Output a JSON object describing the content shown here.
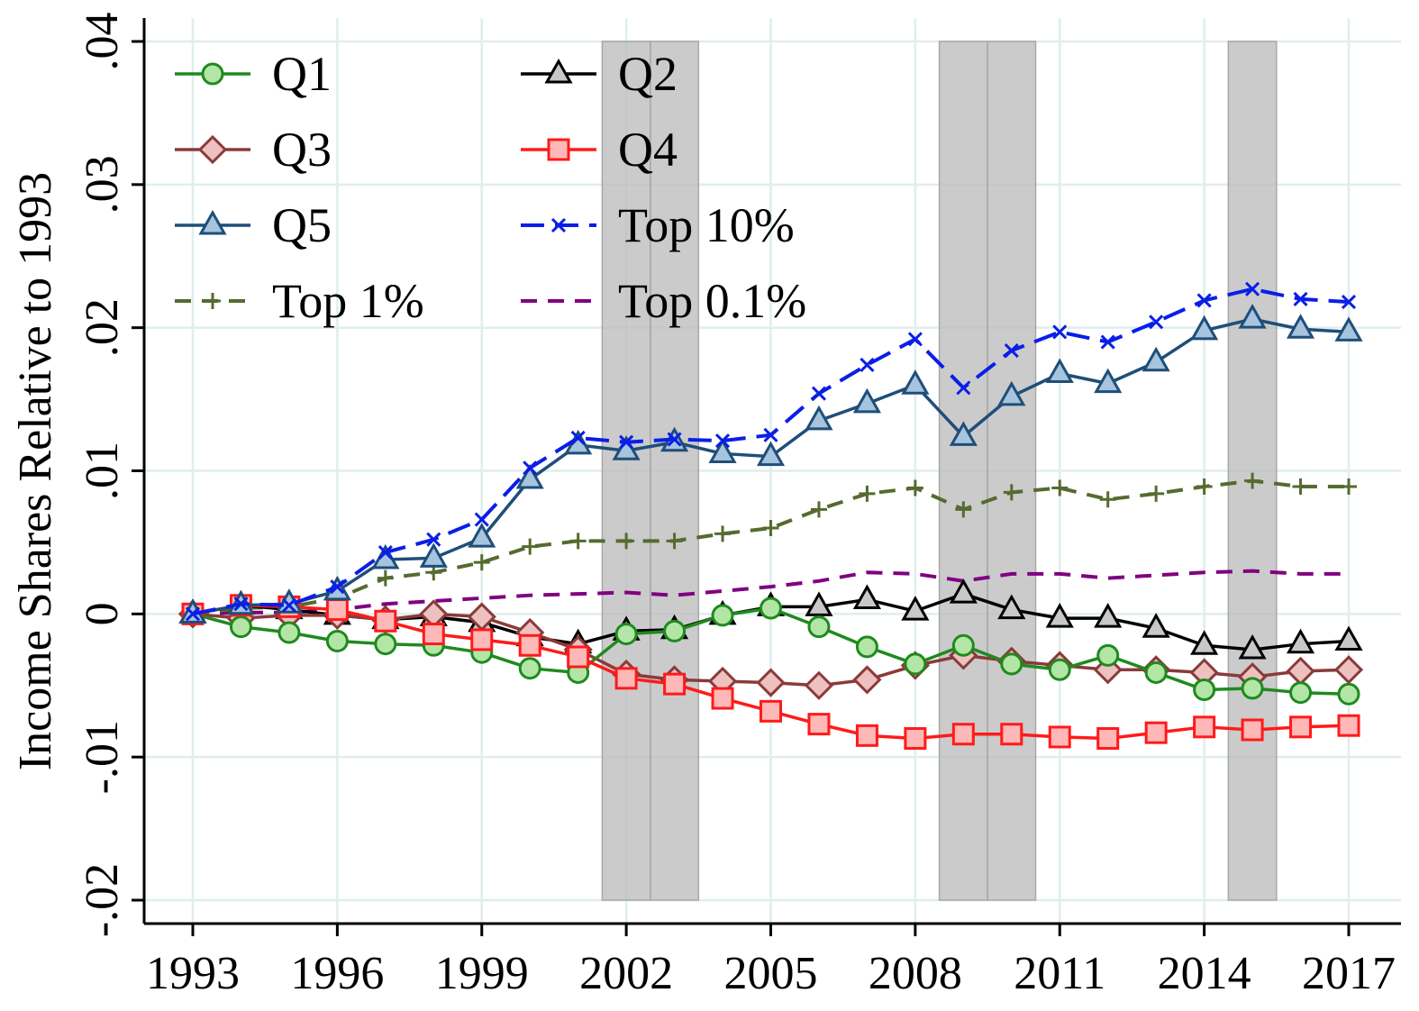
{
  "chart_data": {
    "type": "line",
    "title": "",
    "xlabel": "",
    "ylabel": "Income Shares Relative to 1993",
    "xlim": [
      1993,
      2017
    ],
    "ylim": [
      -0.02,
      0.04
    ],
    "x_ticks": [
      1993,
      1996,
      1999,
      2002,
      2005,
      2008,
      2011,
      2014,
      2017
    ],
    "x_tick_labels": [
      "1993",
      "1996",
      "1999",
      "2002",
      "2005",
      "2008",
      "2011",
      "2014",
      "2017"
    ],
    "y_ticks": [
      -0.02,
      -0.01,
      0,
      0.01,
      0.02,
      0.03,
      0.04
    ],
    "y_tick_labels": [
      "-.02",
      "-.01",
      "0",
      ".01",
      ".02",
      ".03",
      ".04"
    ],
    "grid": true,
    "legend_position": "top-left",
    "recession_bands": [
      [
        2001.5,
        2002.5
      ],
      [
        2002.5,
        2003.5
      ],
      [
        2008.5,
        2009.5
      ],
      [
        2009.5,
        2010.5
      ],
      [
        2014.5,
        2015.5
      ]
    ],
    "x": [
      1993,
      1994,
      1995,
      1996,
      1997,
      1998,
      1999,
      2000,
      2001,
      2002,
      2003,
      2004,
      2005,
      2006,
      2007,
      2008,
      2009,
      2010,
      2011,
      2012,
      2013,
      2014,
      2015,
      2016,
      2017
    ],
    "series": [
      {
        "name": "Q1",
        "color": "#1f8a1f",
        "fill": "#b3e6a6",
        "marker": "circle",
        "dash": "solid",
        "values": [
          0,
          -0.0009,
          -0.0013,
          -0.0019,
          -0.0021,
          -0.0022,
          -0.0027,
          -0.0038,
          -0.0041,
          -0.0014,
          -0.0012,
          -0.0001,
          0.0004,
          -0.0009,
          -0.0023,
          -0.0035,
          -0.0022,
          -0.0035,
          -0.0039,
          -0.0029,
          -0.0041,
          -0.0053,
          -0.0052,
          -0.0055,
          -0.0056
        ]
      },
      {
        "name": "Q2",
        "color": "#000000",
        "fill": "#c8c8c8",
        "marker": "triangle",
        "dash": "solid",
        "values": [
          0,
          0.0006,
          0.0003,
          -0.0001,
          -0.0004,
          -0.0002,
          -0.0006,
          -0.0016,
          -0.0021,
          -0.0012,
          -0.0011,
          -0.0001,
          0.0005,
          0.0005,
          0.001,
          0.0002,
          0.0014,
          0.0003,
          -0.0003,
          -0.0003,
          -0.001,
          -0.0022,
          -0.0025,
          -0.0021,
          -0.0019
        ]
      },
      {
        "name": "Q3",
        "color": "#8b3a3a",
        "fill": "#eec1c1",
        "marker": "diamond",
        "dash": "solid",
        "values": [
          0,
          -0.0003,
          -0.0001,
          -0.0001,
          -0.0004,
          0.0,
          -0.0002,
          -0.0013,
          -0.0025,
          -0.0042,
          -0.0046,
          -0.0047,
          -0.0048,
          -0.005,
          -0.0046,
          -0.0036,
          -0.0029,
          -0.0033,
          -0.0036,
          -0.0039,
          -0.0039,
          -0.0041,
          -0.0044,
          -0.004,
          -0.0039
        ]
      },
      {
        "name": "Q4",
        "color": "#ff1a1a",
        "fill": "#ffb8b8",
        "marker": "square",
        "dash": "solid",
        "values": [
          0,
          0.0006,
          0.0005,
          0.0003,
          -0.0005,
          -0.0014,
          -0.0018,
          -0.0022,
          -0.003,
          -0.0045,
          -0.0049,
          -0.0059,
          -0.0068,
          -0.0077,
          -0.0085,
          -0.0087,
          -0.0084,
          -0.0084,
          -0.0086,
          -0.0087,
          -0.0083,
          -0.0079,
          -0.0081,
          -0.0079,
          -0.0078
        ]
      },
      {
        "name": "Q5",
        "color": "#1f4e79",
        "fill": "#a6c4dd",
        "marker": "triangle",
        "dash": "solid",
        "values": [
          0,
          0.0006,
          0.0007,
          0.0016,
          0.0038,
          0.0039,
          0.0053,
          0.0094,
          0.0118,
          0.0114,
          0.012,
          0.0112,
          0.011,
          0.0135,
          0.0147,
          0.016,
          0.0124,
          0.0152,
          0.0168,
          0.0161,
          0.0176,
          0.0198,
          0.0206,
          0.0199,
          0.0197
        ]
      },
      {
        "name": "Top 10%",
        "color": "#0a1ee8",
        "fill": "none",
        "marker": "x",
        "dash": "long",
        "values": [
          0,
          0.0007,
          0.0006,
          0.0019,
          0.0043,
          0.0052,
          0.0066,
          0.0102,
          0.0123,
          0.012,
          0.0122,
          0.0121,
          0.0125,
          0.0154,
          0.0174,
          0.0192,
          0.0158,
          0.0184,
          0.0197,
          0.019,
          0.0204,
          0.0219,
          0.0227,
          0.022,
          0.0218
        ]
      },
      {
        "name": "Top 1%",
        "color": "#556b2f",
        "fill": "none",
        "marker": "plus",
        "dash": "medium",
        "values": [
          0,
          0.0004,
          0.0005,
          0.0011,
          0.0025,
          0.0029,
          0.0036,
          0.0047,
          0.0051,
          0.0051,
          0.0051,
          0.0056,
          0.006,
          0.0073,
          0.0084,
          0.0088,
          0.0073,
          0.0085,
          0.0088,
          0.008,
          0.0084,
          0.0089,
          0.0093,
          0.0089,
          0.0089
        ]
      },
      {
        "name": "Top 0.1%",
        "color": "#800080",
        "fill": "none",
        "marker": "none",
        "dash": "medium",
        "values": [
          0,
          0.0001,
          0.0001,
          0.0003,
          0.0007,
          0.0009,
          0.0011,
          0.0013,
          0.0014,
          0.0015,
          0.0013,
          0.0016,
          0.0019,
          0.0023,
          0.0029,
          0.0028,
          0.0023,
          0.0028,
          0.0028,
          0.0025,
          0.0027,
          0.0029,
          0.003,
          0.0028,
          0.0028
        ]
      }
    ]
  }
}
